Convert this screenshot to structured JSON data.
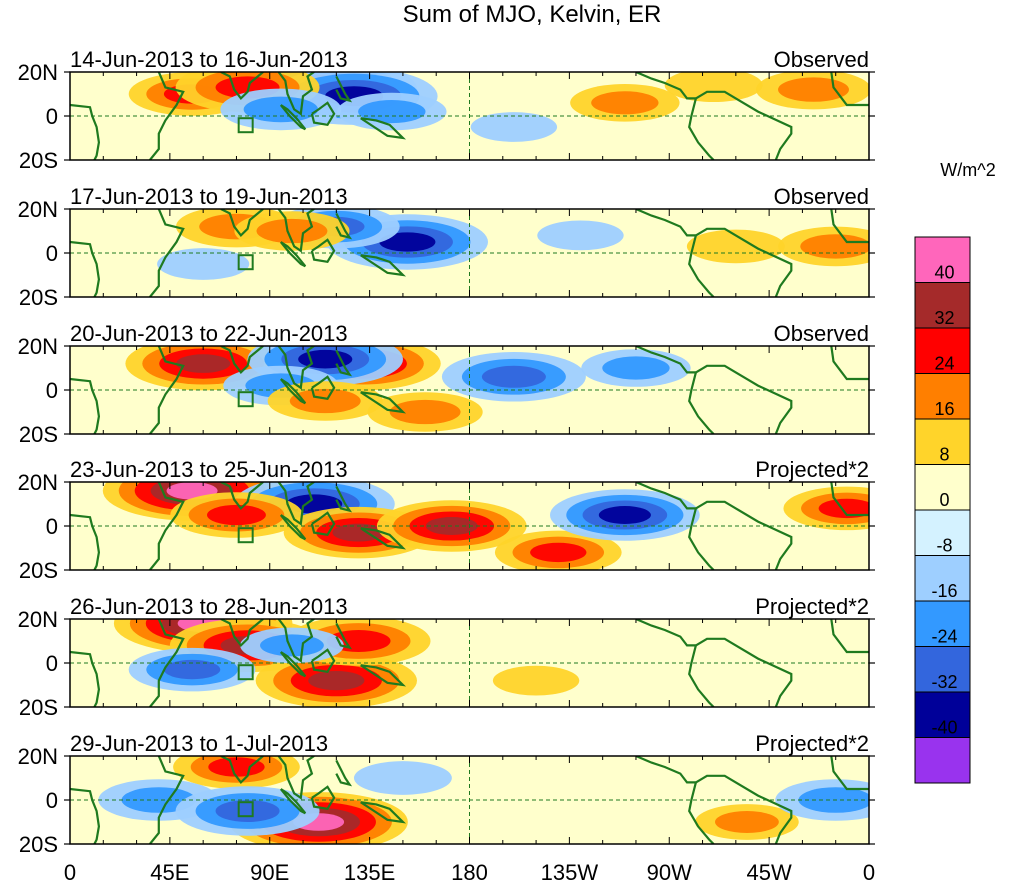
{
  "chart_data": {
    "type": "heatmap",
    "title": "Sum of MJO, Kelvin, ER",
    "units": "W/m^2",
    "y_ticks": [
      "20N",
      "0",
      "20S"
    ],
    "x_ticks": [
      "0",
      "45E",
      "90E",
      "135E",
      "180",
      "135W",
      "90W",
      "45W",
      "0"
    ],
    "xlim_deg_east": [
      0,
      360
    ],
    "ylim_deg_lat": [
      -20,
      20
    ],
    "colorbar": {
      "levels": [
        "40",
        "32",
        "24",
        "16",
        "8",
        "0",
        "-8",
        "-16",
        "-24",
        "-32",
        "-40"
      ],
      "colors": [
        "#ff66bb",
        "#a52a2a",
        "#ff0000",
        "#ff7f00",
        "#ffd42a",
        "#ffffcc",
        "#d4f2ff",
        "#9ecfff",
        "#3399ff",
        "#3366dd",
        "#000099",
        "#9933ee"
      ]
    },
    "panels": [
      {
        "date_range": "14-Jun-2013 to 16-Jun-2013",
        "label": "Observed",
        "anomalies": [
          {
            "lon": 115,
            "lat": 12,
            "value": -44
          },
          {
            "lon": 128,
            "lat": 9,
            "value": -38
          },
          {
            "lon": 145,
            "lat": 2,
            "value": -18
          },
          {
            "lon": 55,
            "lat": 10,
            "value": 24
          },
          {
            "lon": 80,
            "lat": 13,
            "value": 30
          },
          {
            "lon": 95,
            "lat": 3,
            "value": -22
          },
          {
            "lon": 250,
            "lat": 6,
            "value": 18
          },
          {
            "lon": 335,
            "lat": 12,
            "value": 20
          },
          {
            "lon": 290,
            "lat": 14,
            "value": 14
          },
          {
            "lon": 200,
            "lat": -5,
            "value": -10
          }
        ]
      },
      {
        "date_range": "17-Jun-2013 to 19-Jun-2013",
        "label": "Observed",
        "anomalies": [
          {
            "lon": 152,
            "lat": 5,
            "value": -36
          },
          {
            "lon": 120,
            "lat": 12,
            "value": -24
          },
          {
            "lon": 75,
            "lat": 12,
            "value": 22
          },
          {
            "lon": 100,
            "lat": 10,
            "value": 20
          },
          {
            "lon": 60,
            "lat": -5,
            "value": -12
          },
          {
            "lon": 345,
            "lat": 3,
            "value": 20
          },
          {
            "lon": 300,
            "lat": 3,
            "value": 14
          },
          {
            "lon": 230,
            "lat": 8,
            "value": -10
          }
        ]
      },
      {
        "date_range": "20-Jun-2013 to 22-Jun-2013",
        "label": "Observed",
        "anomalies": [
          {
            "lon": 60,
            "lat": 12,
            "value": 34
          },
          {
            "lon": 132,
            "lat": 12,
            "value": 34
          },
          {
            "lon": 115,
            "lat": 14,
            "value": -34
          },
          {
            "lon": 95,
            "lat": 2,
            "value": -20
          },
          {
            "lon": 200,
            "lat": 6,
            "value": -30
          },
          {
            "lon": 160,
            "lat": -10,
            "value": 20
          },
          {
            "lon": 115,
            "lat": -5,
            "value": 20
          },
          {
            "lon": 255,
            "lat": 10,
            "value": -18
          }
        ]
      },
      {
        "date_range": "23-Jun-2013 to 25-Jun-2013",
        "label": "Projected*2",
        "anomalies": [
          {
            "lon": 55,
            "lat": 16,
            "value": 42
          },
          {
            "lon": 110,
            "lat": 10,
            "value": -36
          },
          {
            "lon": 75,
            "lat": 5,
            "value": 26
          },
          {
            "lon": 130,
            "lat": -3,
            "value": 32
          },
          {
            "lon": 172,
            "lat": 0,
            "value": 32
          },
          {
            "lon": 220,
            "lat": -12,
            "value": 24
          },
          {
            "lon": 350,
            "lat": 8,
            "value": 24
          },
          {
            "lon": 250,
            "lat": 5,
            "value": -32
          }
        ]
      },
      {
        "date_range": "26-Jun-2013 to 28-Jun-2013",
        "label": "Projected*2",
        "anomalies": [
          {
            "lon": 60,
            "lat": 18,
            "value": 42
          },
          {
            "lon": 80,
            "lat": 8,
            "value": 34
          },
          {
            "lon": 120,
            "lat": -8,
            "value": 36
          },
          {
            "lon": 130,
            "lat": 10,
            "value": 30
          },
          {
            "lon": 55,
            "lat": -3,
            "value": -24
          },
          {
            "lon": 100,
            "lat": 8,
            "value": -16
          },
          {
            "lon": 210,
            "lat": -8,
            "value": 10
          }
        ]
      },
      {
        "date_range": "29-Jun-2013 to 1-Jul-2013",
        "label": "Projected*2",
        "anomalies": [
          {
            "lon": 112,
            "lat": -10,
            "value": 42
          },
          {
            "lon": 75,
            "lat": 15,
            "value": 24
          },
          {
            "lon": 40,
            "lat": 0,
            "value": -22
          },
          {
            "lon": 80,
            "lat": -5,
            "value": -30
          },
          {
            "lon": 150,
            "lat": 10,
            "value": -14
          },
          {
            "lon": 305,
            "lat": -10,
            "value": 16
          },
          {
            "lon": 345,
            "lat": 0,
            "value": -22
          }
        ]
      }
    ]
  }
}
